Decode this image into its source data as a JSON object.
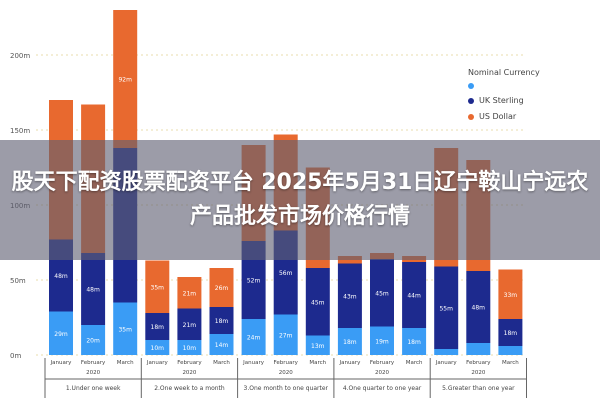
{
  "title": "股天下配资股票配资平台 2025年5月31日辽宁鞍山宁远农产品批发市场价格行情",
  "legend": {
    "title": "Nominal Currency",
    "items": [
      {
        "label": "",
        "color": "#3a9cf5"
      },
      {
        "label": "UK Sterling",
        "color": "#1d2a8e"
      },
      {
        "label": "US Dollar",
        "color": "#e8692f"
      }
    ]
  },
  "chart_data": {
    "type": "bar",
    "stacked": true,
    "ylim": [
      0,
      240
    ],
    "yticks": [
      "0m",
      "50m",
      "100m",
      "150m",
      "200m"
    ],
    "ytick_values": [
      0,
      50,
      100,
      150,
      200
    ],
    "grid": true,
    "legend_position": "right",
    "categories": [
      "January",
      "February",
      "March",
      "January",
      "February",
      "March",
      "January",
      "February",
      "March",
      "January",
      "February",
      "March",
      "January",
      "February",
      "March"
    ],
    "year_labels": [
      "2020",
      "2020",
      "2020",
      "2020",
      "2020"
    ],
    "groups": [
      "1.Under one week",
      "2.One week to a month",
      "3.One month to one quarter",
      "4.One quarter to one year",
      "5.Greater than one year"
    ],
    "series": [
      {
        "color": "#3a9cf5",
        "values": [
          29,
          20,
          35,
          10,
          10,
          14,
          24,
          27,
          13,
          18,
          19,
          18,
          4,
          8,
          6
        ]
      },
      {
        "name": "UK Sterling",
        "color": "#1d2a8e",
        "values": [
          48,
          48,
          103,
          18,
          21,
          18,
          52,
          56,
          45,
          43,
          45,
          44,
          55,
          48,
          18
        ]
      },
      {
        "name": "US Dollar",
        "color": "#e8692f",
        "values": [
          93,
          99,
          92,
          35,
          21,
          26,
          64,
          64,
          67,
          5,
          4,
          4,
          79,
          74,
          33
        ]
      }
    ]
  }
}
